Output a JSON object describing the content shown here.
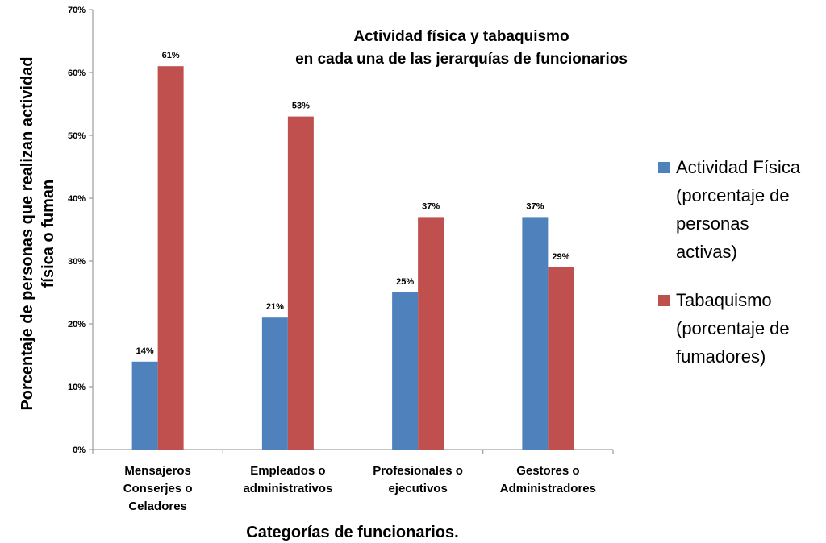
{
  "chart_data": {
    "type": "bar",
    "title": [
      "Actividad física y tabaquismo",
      "en cada una de las jerarquías de funcionarios"
    ],
    "xlabel": "Categorías de funcionarios.",
    "ylabel": [
      "Porcentaje de personas que realizan actividad",
      "física o fuman"
    ],
    "ylim": [
      0,
      70
    ],
    "yticks": [
      "0%",
      "10%",
      "20%",
      "30%",
      "40%",
      "50%",
      "60%",
      "70%"
    ],
    "categories": [
      [
        "Mensajeros",
        "Conserjes o",
        "Celadores"
      ],
      [
        "Empleados o",
        "administrativos"
      ],
      [
        "Profesionales o",
        "ejecutivos"
      ],
      [
        "Gestores o",
        "Administradores"
      ]
    ],
    "series": [
      {
        "name": [
          "Actividad Física",
          "(porcentaje de",
          "personas",
          "activas)"
        ],
        "color": "#4f81bd",
        "values": [
          14,
          21,
          25,
          37
        ],
        "labels": [
          "14%",
          "21%",
          "25%",
          "37%"
        ]
      },
      {
        "name": [
          "Tabaquismo",
          "(porcentaje de",
          "fumadores)"
        ],
        "color": "#c0504d",
        "values": [
          61,
          53,
          37,
          29
        ],
        "labels": [
          "61%",
          "53%",
          "37%",
          "29%"
        ]
      }
    ],
    "grid": false,
    "legend": "right"
  }
}
